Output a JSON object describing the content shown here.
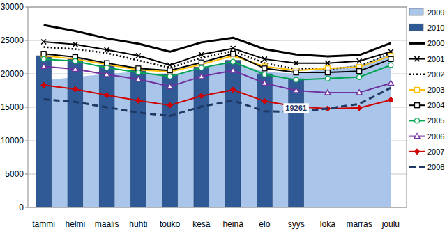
{
  "chart_data": {
    "type": "bar",
    "categories": [
      "tammi",
      "helmi",
      "maalis",
      "huhti",
      "touko",
      "kesä",
      "heinä",
      "elo",
      "syys",
      "loka",
      "marras",
      "joulu"
    ],
    "ylim": [
      0,
      30000
    ],
    "yticks": [
      0,
      5000,
      10000,
      15000,
      20000,
      25000,
      30000
    ],
    "grid": true,
    "legend": "right",
    "series": [
      {
        "name": "2009",
        "type": "area",
        "color": "#a9c6ea",
        "values": [
          19000,
          19500,
          20000,
          20300,
          19700,
          21000,
          21700,
          20300,
          20000,
          20800,
          21300,
          23000
        ]
      },
      {
        "name": "2010",
        "type": "bar",
        "color": "#2f5a96",
        "values": [
          22700,
          22200,
          21300,
          20600,
          19900,
          21000,
          22000,
          20000,
          19261,
          null,
          null,
          null
        ],
        "value_labels": [
          null,
          null,
          null,
          null,
          null,
          null,
          null,
          null,
          "19261",
          null,
          null,
          null
        ]
      },
      {
        "name": "2000",
        "type": "line",
        "color": "#000000",
        "line_style": "solid",
        "values": [
          27300,
          26400,
          25300,
          24500,
          23300,
          24700,
          25400,
          23700,
          22900,
          22600,
          22800,
          24600
        ]
      },
      {
        "name": "2001",
        "type": "line",
        "color": "#000000",
        "line_style": "solid",
        "marker": "x",
        "values": [
          24800,
          24400,
          23600,
          22700,
          21300,
          22900,
          23800,
          22200,
          21600,
          21600,
          21900,
          23300
        ]
      },
      {
        "name": "2002",
        "type": "line",
        "color": "#000000",
        "line_style": "dotted",
        "values": [
          24000,
          23700,
          23100,
          22000,
          20900,
          22400,
          23400,
          21600,
          20700,
          20700,
          21100,
          23100
        ]
      },
      {
        "name": "2003",
        "type": "line",
        "color": "#ffc000",
        "line_style": "solid",
        "marker": "square",
        "values": [
          22700,
          22200,
          21400,
          20600,
          20300,
          21400,
          22700,
          21100,
          20500,
          20800,
          21000,
          22700
        ]
      },
      {
        "name": "2004",
        "type": "line",
        "color": "#000000",
        "line_style": "solid",
        "marker": "square",
        "values": [
          23000,
          22500,
          21600,
          20800,
          20500,
          21700,
          23000,
          20800,
          20200,
          20200,
          20400,
          22200
        ]
      },
      {
        "name": "2005",
        "type": "line",
        "color": "#00a651",
        "line_style": "solid",
        "marker": "circle",
        "values": [
          22200,
          21900,
          20900,
          20200,
          19600,
          20900,
          21800,
          19900,
          19100,
          19300,
          19500,
          21300
        ]
      },
      {
        "name": "2006",
        "type": "line",
        "color": "#7030a0",
        "line_style": "solid",
        "marker": "triangle",
        "values": [
          21100,
          20700,
          19900,
          19200,
          18100,
          19600,
          20500,
          18600,
          17500,
          17200,
          17200,
          18600
        ]
      },
      {
        "name": "2007",
        "type": "line",
        "color": "#d00000",
        "line_style": "solid",
        "marker": "diamond",
        "values": [
          18300,
          17700,
          16800,
          16000,
          15300,
          16700,
          17600,
          15900,
          15100,
          14800,
          14900,
          16100
        ]
      },
      {
        "name": "2008",
        "type": "line",
        "color": "#1f3864",
        "line_style": "dashed",
        "values": [
          16200,
          15800,
          15000,
          14200,
          13700,
          15100,
          16000,
          14400,
          14300,
          14800,
          15500,
          17900
        ]
      }
    ]
  }
}
